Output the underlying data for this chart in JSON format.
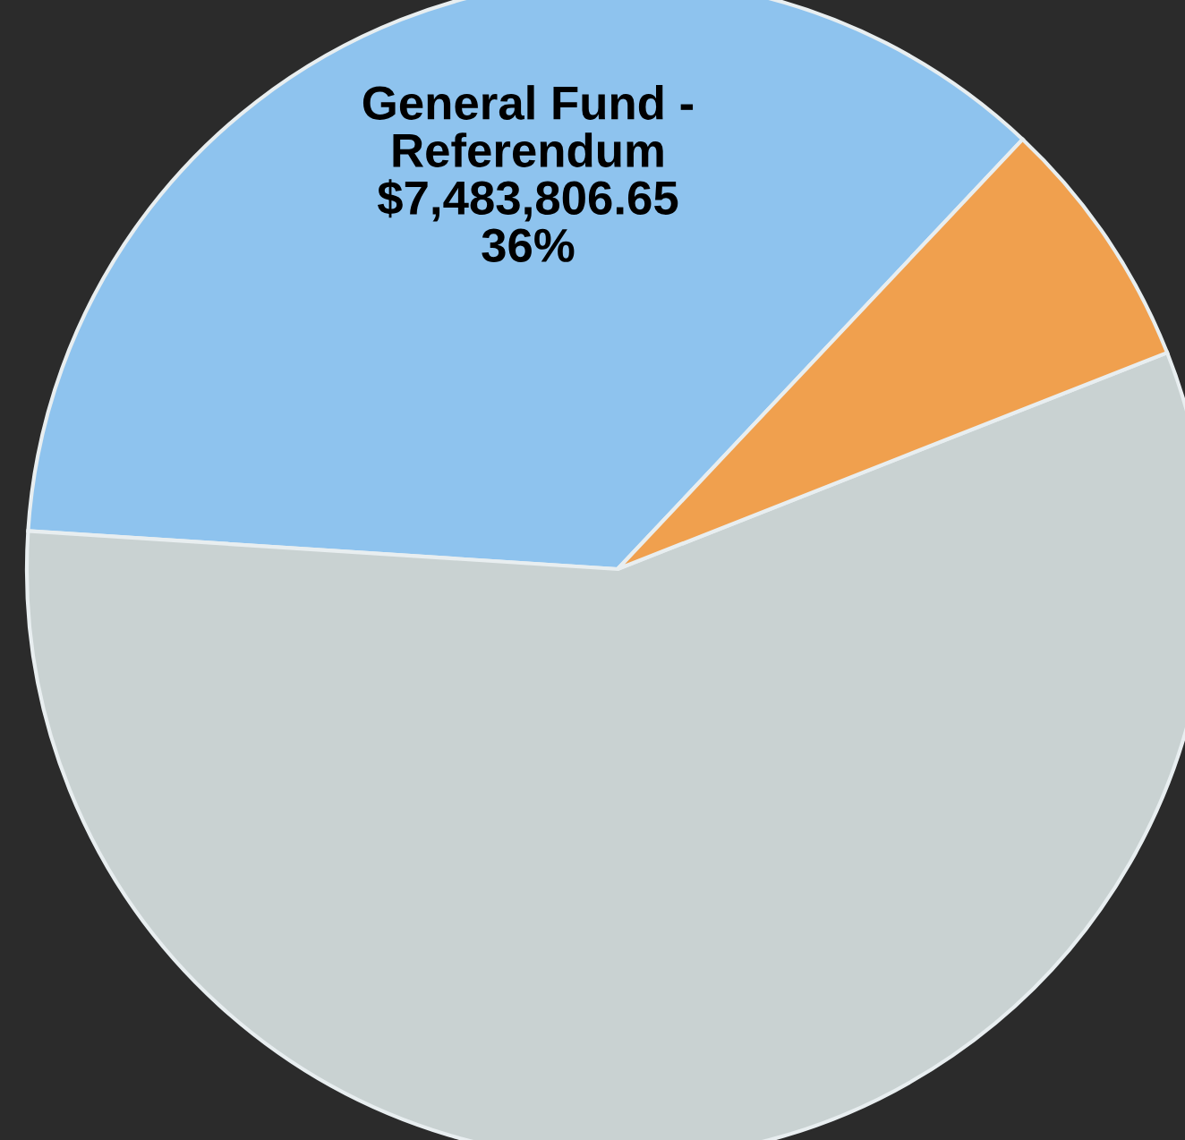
{
  "chart_data": {
    "type": "pie",
    "categories": [
      "General Fund -\nReferendum",
      null,
      null
    ],
    "values": [
      36,
      57,
      7
    ],
    "colors": [
      "#8ec3ee",
      "#c9d2d2",
      "#f0a04e"
    ],
    "value_labels": [
      "$7,483,806.65\n36%",
      null,
      null
    ],
    "legend": false
  }
}
